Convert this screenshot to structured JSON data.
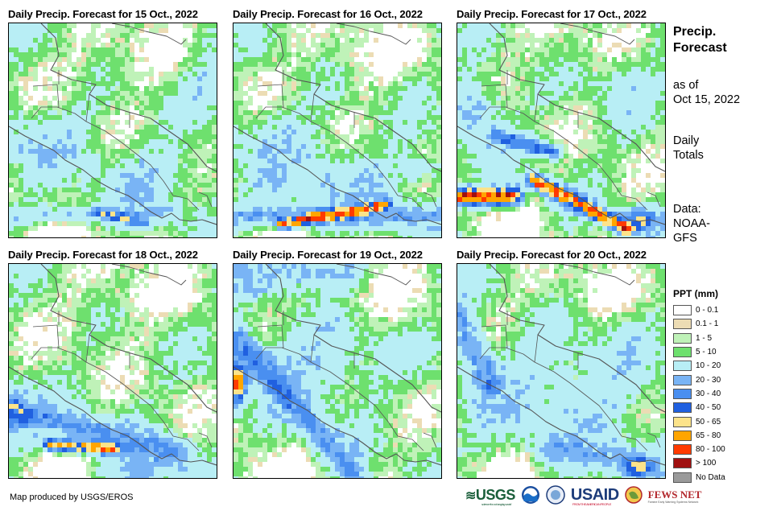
{
  "panels": [
    {
      "title": "Daily Precip. Forecast for 15 Oct., 2022"
    },
    {
      "title": "Daily Precip. Forecast for 16 Oct., 2022"
    },
    {
      "title": "Daily Precip. Forecast for 17 Oct., 2022"
    },
    {
      "title": "Daily Precip. Forecast for 18 Oct., 2022"
    },
    {
      "title": "Daily Precip. Forecast for 19 Oct., 2022"
    },
    {
      "title": "Daily Precip. Forecast for 20 Oct., 2022"
    }
  ],
  "info": {
    "title_line1": "Precip.",
    "title_line2": "Forecast",
    "asof_line1": "as of",
    "asof_line2": "Oct 15, 2022",
    "totals_line1": "Daily",
    "totals_line2": "Totals",
    "data_line1": "Data:",
    "data_line2": "NOAA-",
    "data_line3": "GFS"
  },
  "legend": {
    "title": "PPT (mm)",
    "items": [
      {
        "label": "0 - 0.1",
        "color": "#ffffff"
      },
      {
        "label": "0.1 - 1",
        "color": "#ecdcb4"
      },
      {
        "label": "1 - 5",
        "color": "#bff2b8"
      },
      {
        "label": "5 - 10",
        "color": "#6ee06e"
      },
      {
        "label": "10 - 20",
        "color": "#b8eef5"
      },
      {
        "label": "20 - 30",
        "color": "#79b4f5"
      },
      {
        "label": "30 - 40",
        "color": "#4a8ff0"
      },
      {
        "label": "40 - 50",
        "color": "#2060e0"
      },
      {
        "label": "50 - 65",
        "color": "#fce38a"
      },
      {
        "label": "65 - 80",
        "color": "#ffa500"
      },
      {
        "label": "80 - 100",
        "color": "#ff3a00"
      },
      {
        "label": "> 100",
        "color": "#a01010"
      },
      {
        "label": "No Data",
        "color": "#9a9a9a"
      }
    ]
  },
  "credit": "Map produced by USGS/EROS",
  "logos": {
    "usgs": "USGS",
    "usgs_tag": "science for a changing world",
    "usaid": "USAID",
    "usaid_tag": "FROM THE AMERICAN PEOPLE",
    "fewsnet": "FEWS NET",
    "fewsnet_tag": "Famine Early Warning Systems Network"
  }
}
